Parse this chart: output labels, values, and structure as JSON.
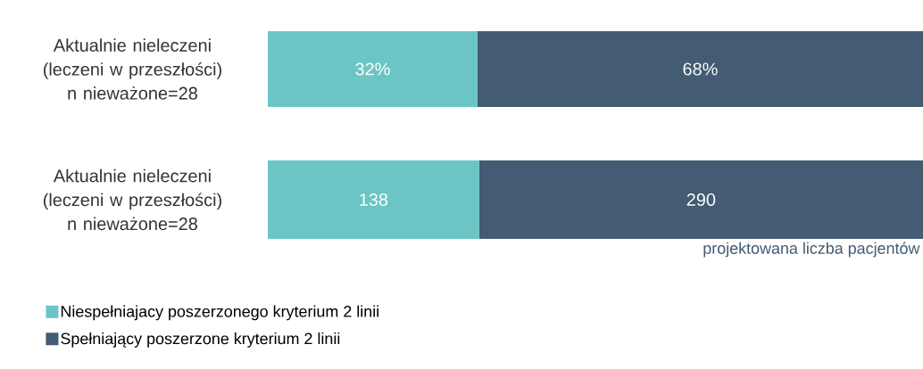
{
  "chart_data": [
    {
      "type": "bar",
      "orientation": "horizontal",
      "stacked": true,
      "categories": [
        "Aktualnie nieleczeni (leczeni w przeszłości) n nieważone=28"
      ],
      "series": [
        {
          "color": "#6cc5c5",
          "values": [
            32
          ],
          "value_labels": [
            "32%"
          ]
        },
        {
          "color": "#435b73",
          "values": [
            68
          ],
          "value_labels": [
            "68%"
          ]
        }
      ]
    },
    {
      "type": "bar",
      "orientation": "horizontal",
      "stacked": true,
      "categories": [
        "Aktualnie nieleczeni (leczeni w przeszłości) n nieważone=28"
      ],
      "series": [
        {
          "name": "Niespełniajacy poszerzonego kryterium 2 linii",
          "color": "#6cc5c5",
          "values": [
            138
          ]
        },
        {
          "name": "Spełniający poszerzone kryterium 2 linii",
          "color": "#435b73",
          "values": [
            290
          ]
        }
      ],
      "data_labels": true,
      "annotations": [
        "projektowana liczba pacjentów"
      ],
      "legend": "bottom"
    }
  ]
}
